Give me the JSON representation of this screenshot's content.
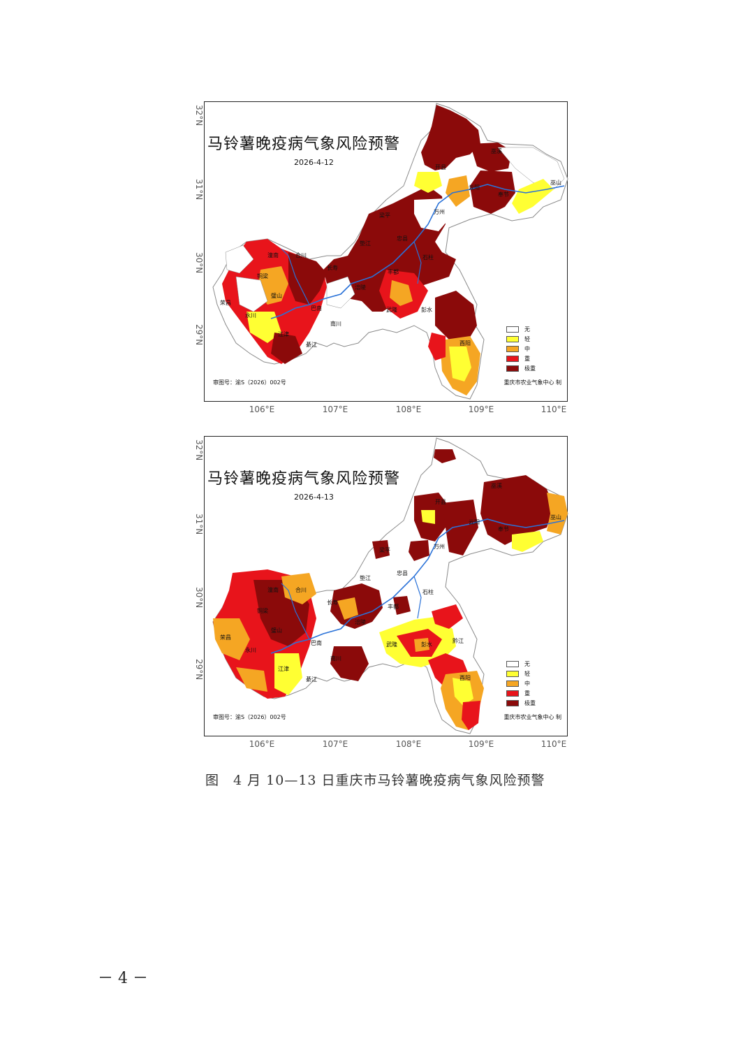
{
  "maps": [
    {
      "title": "马铃薯晚疫病气象风险预警",
      "date": "2026-4-12",
      "review_no": "审图号：渝S（2026）002号",
      "maker": "重庆市农业气象中心 制",
      "place_labels": [
        "巫溪",
        "开县",
        "巫山",
        "奉节",
        "云阳",
        "万州",
        "梁平",
        "垫江",
        "忠县",
        "石柱",
        "丰都",
        "涪陵",
        "长寿",
        "潼南",
        "铜梁",
        "合川",
        "荣昌",
        "永川",
        "璧山",
        "巴南",
        "武隆",
        "彭水",
        "酉阳",
        "江津",
        "綦江",
        "南川"
      ]
    },
    {
      "title": "马铃薯晚疫病气象风险预警",
      "date": "2026-4-13",
      "review_no": "审图号：渝S（2026）002号",
      "maker": "重庆市农业气象中心 制",
      "place_labels": [
        "巫溪",
        "开县",
        "巫山",
        "奉节",
        "云阳",
        "万州",
        "梁平",
        "垫江",
        "忠县",
        "石柱",
        "丰都",
        "涪陵",
        "长寿",
        "潼南",
        "铜梁",
        "合川",
        "荣昌",
        "永川",
        "璧山",
        "巴南",
        "武隆",
        "彭水",
        "黔江",
        "酉阳",
        "江津",
        "綦江",
        "南川"
      ]
    }
  ],
  "legend": [
    {
      "label": "无",
      "color": "#ffffff"
    },
    {
      "label": "轻",
      "color": "#ffff33"
    },
    {
      "label": "中",
      "color": "#f5a623"
    },
    {
      "label": "重",
      "color": "#e8141b"
    },
    {
      "label": "极重",
      "color": "#8b0a0a"
    }
  ],
  "axes": {
    "lon_ticks": [
      "106°E",
      "107°E",
      "108°E",
      "109°E",
      "110°E"
    ],
    "lat_ticks": [
      "32°N",
      "31°N",
      "30°N",
      "29°N"
    ]
  },
  "colors": {
    "river": "#2a72d8",
    "boundary": "#8a8a8a",
    "frame": "#222222"
  },
  "caption": "图　4 月 10—13 日重庆市马铃薯晚疫病气象风险预警",
  "page_number": "－ 4 －"
}
